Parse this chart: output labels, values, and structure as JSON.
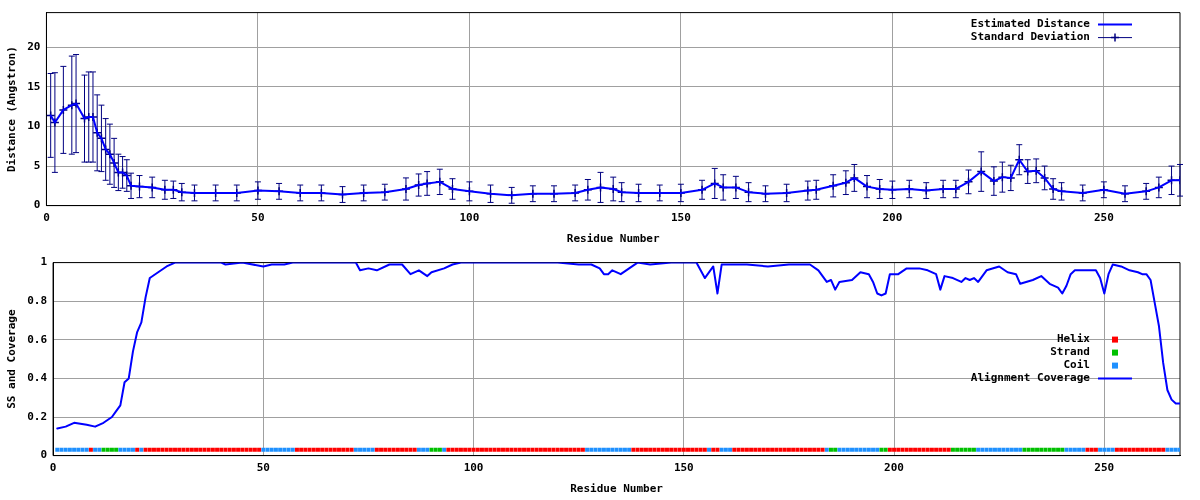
{
  "chart_data": [
    {
      "type": "line",
      "xlabel": "Residue Number",
      "ylabel": "Distance (Angstron)",
      "xlim": [
        0,
        268
      ],
      "xticks": [
        0,
        50,
        100,
        150,
        200,
        250
      ],
      "ylim": [
        0,
        24.4
      ],
      "yticks": [
        0,
        5,
        10,
        15,
        20
      ],
      "grid": true,
      "legend": "top right",
      "x": [
        1,
        2,
        4,
        6,
        7,
        9,
        10,
        11,
        12,
        13,
        14,
        15,
        16,
        17,
        18,
        19,
        20,
        22,
        25,
        28,
        30,
        32,
        35,
        40,
        45,
        50,
        55,
        60,
        65,
        70,
        75,
        80,
        85,
        88,
        90,
        93,
        96,
        100,
        105,
        110,
        115,
        120,
        125,
        128,
        131,
        134,
        136,
        140,
        145,
        150,
        155,
        158,
        160,
        163,
        166,
        170,
        175,
        180,
        182,
        186,
        189,
        191,
        194,
        197,
        200,
        204,
        208,
        212,
        215,
        218,
        221,
        224,
        226,
        228,
        230,
        232,
        234,
        236,
        238,
        240,
        245,
        250,
        255,
        260,
        263,
        266,
        268
      ],
      "series": [
        {
          "name": "Estimated Distance",
          "color": "#0000ff",
          "values": [
            11.4,
            10.5,
            12.1,
            12.7,
            12.9,
            11.0,
            11.2,
            11.2,
            9.2,
            8.5,
            7.1,
            6.5,
            5.4,
            4.2,
            4.2,
            3.8,
            2.5,
            2.4,
            2.3,
            2.0,
            2.0,
            1.7,
            1.6,
            1.6,
            1.6,
            1.9,
            1.8,
            1.6,
            1.6,
            1.4,
            1.6,
            1.7,
            2.1,
            2.6,
            2.8,
            3.0,
            2.1,
            1.8,
            1.5,
            1.3,
            1.5,
            1.5,
            1.6,
            2.0,
            2.3,
            2.1,
            1.7,
            1.6,
            1.6,
            1.6,
            2.0,
            2.8,
            2.3,
            2.3,
            1.7,
            1.5,
            1.6,
            1.9,
            2.0,
            2.5,
            2.9,
            3.5,
            2.4,
            2.1,
            2.0,
            2.1,
            1.9,
            2.1,
            2.1,
            3.0,
            4.3,
            3.1,
            3.6,
            3.5,
            5.8,
            4.3,
            4.4,
            3.5,
            2.1,
            1.8,
            1.6,
            2.0,
            1.5,
            1.8,
            2.3,
            3.2,
            3.2
          ]
        },
        {
          "name": "Standard Deviation",
          "type": "scatter",
          "marker": "cross",
          "color": "#000080",
          "values": [
            11.4,
            10.5,
            12.1,
            12.7,
            12.9,
            11.0,
            11.2,
            11.2,
            9.2,
            8.5,
            7.1,
            6.5,
            5.4,
            4.2,
            4.2,
            3.8,
            2.5,
            2.4,
            2.3,
            2.0,
            2.0,
            1.7,
            1.6,
            1.6,
            1.6,
            1.9,
            1.8,
            1.6,
            1.6,
            1.4,
            1.6,
            1.7,
            2.1,
            2.6,
            2.8,
            3.0,
            2.1,
            1.8,
            1.5,
            1.3,
            1.5,
            1.5,
            1.6,
            2.0,
            2.3,
            2.1,
            1.7,
            1.6,
            1.6,
            1.6,
            2.0,
            2.8,
            2.3,
            2.3,
            1.7,
            1.5,
            1.6,
            1.9,
            2.0,
            2.5,
            2.9,
            3.5,
            2.4,
            2.1,
            2.0,
            2.1,
            1.9,
            2.1,
            2.1,
            3.0,
            4.3,
            3.1,
            3.6,
            3.5,
            5.8,
            4.3,
            4.4,
            3.5,
            2.1,
            1.8,
            1.6,
            2.0,
            1.5,
            1.8,
            2.3,
            3.2,
            3.2
          ],
          "errors": [
            5.3,
            6.3,
            5.5,
            6.2,
            6.2,
            5.5,
            5.7,
            5.7,
            4.8,
            4.2,
            3.9,
            3.8,
            3.1,
            2.3,
            2.0,
            2.0,
            1.6,
            1.4,
            1.3,
            1.2,
            1.1,
            1.1,
            1.0,
            1.0,
            1.0,
            1.1,
            1.0,
            1.0,
            1.0,
            1.0,
            1.0,
            1.0,
            1.4,
            1.4,
            1.5,
            1.6,
            1.3,
            1.2,
            1.1,
            1.0,
            1.0,
            1.0,
            1.0,
            1.3,
            1.9,
            1.5,
            1.2,
            1.1,
            1.0,
            1.1,
            1.2,
            1.9,
            1.6,
            1.4,
            1.2,
            1.0,
            1.1,
            1.2,
            1.2,
            1.4,
            1.5,
            1.7,
            1.4,
            1.2,
            1.1,
            1.1,
            1.0,
            1.1,
            1.1,
            1.5,
            2.5,
            1.8,
            1.9,
            1.6,
            1.9,
            1.5,
            1.5,
            1.5,
            1.3,
            1.1,
            1.0,
            1.0,
            1.0,
            1.0,
            1.3,
            1.8,
            2.0
          ]
        }
      ]
    },
    {
      "type": "line",
      "xlabel": "Residue Number",
      "ylabel": "SS and Coverage",
      "xlim": [
        0,
        268
      ],
      "xticks": [
        0,
        50,
        100,
        150,
        200,
        250
      ],
      "ylim": [
        0,
        1
      ],
      "yticks": [
        0,
        0.2,
        0.4,
        0.6,
        0.8,
        1
      ],
      "grid": true,
      "legend": "center right",
      "series": [
        {
          "name": "Helix",
          "type": "scatter",
          "marker": "square",
          "color": "#ff0000",
          "x": [
            9,
            20,
            22,
            23,
            24,
            25,
            26,
            27,
            28,
            29,
            30,
            31,
            32,
            33,
            34,
            35,
            36,
            37,
            38,
            39,
            40,
            41,
            42,
            43,
            44,
            45,
            46,
            47,
            48,
            49,
            58,
            59,
            60,
            61,
            62,
            63,
            64,
            65,
            66,
            67,
            68,
            69,
            70,
            71,
            77,
            78,
            79,
            80,
            81,
            82,
            83,
            84,
            85,
            86,
            94,
            95,
            96,
            97,
            98,
            99,
            100,
            101,
            102,
            103,
            104,
            105,
            106,
            107,
            108,
            109,
            110,
            111,
            112,
            113,
            114,
            115,
            116,
            117,
            118,
            119,
            120,
            121,
            122,
            123,
            124,
            125,
            126,
            138,
            139,
            140,
            141,
            142,
            143,
            144,
            145,
            146,
            147,
            148,
            149,
            150,
            151,
            152,
            153,
            154,
            155,
            157,
            158,
            162,
            163,
            164,
            165,
            166,
            167,
            168,
            169,
            170,
            171,
            172,
            173,
            174,
            175,
            176,
            177,
            178,
            179,
            180,
            181,
            182,
            183,
            199,
            200,
            201,
            202,
            203,
            204,
            205,
            206,
            207,
            208,
            209,
            210,
            211,
            212,
            213,
            246,
            247,
            248,
            253,
            254,
            255,
            256,
            257,
            258,
            259,
            260,
            261,
            262,
            263,
            264
          ],
          "values": [
            0.03,
            0.03,
            0.03,
            0.03,
            0.03,
            0.03,
            0.03,
            0.03,
            0.03,
            0.03,
            0.03,
            0.03,
            0.03,
            0.03,
            0.03,
            0.03,
            0.03,
            0.03,
            0.03,
            0.03,
            0.03,
            0.03,
            0.03,
            0.03,
            0.03,
            0.03,
            0.03,
            0.03,
            0.03,
            0.03,
            0.03,
            0.03,
            0.03,
            0.03,
            0.03,
            0.03,
            0.03,
            0.03,
            0.03,
            0.03,
            0.03,
            0.03,
            0.03,
            0.03,
            0.03,
            0.03,
            0.03,
            0.03,
            0.03,
            0.03,
            0.03,
            0.03,
            0.03,
            0.03,
            0.03,
            0.03,
            0.03,
            0.03,
            0.03,
            0.03,
            0.03,
            0.03,
            0.03,
            0.03,
            0.03,
            0.03,
            0.03,
            0.03,
            0.03,
            0.03,
            0.03,
            0.03,
            0.03,
            0.03,
            0.03,
            0.03,
            0.03,
            0.03,
            0.03,
            0.03,
            0.03,
            0.03,
            0.03,
            0.03,
            0.03,
            0.03,
            0.03,
            0.03,
            0.03,
            0.03,
            0.03,
            0.03,
            0.03,
            0.03,
            0.03,
            0.03,
            0.03,
            0.03,
            0.03,
            0.03,
            0.03,
            0.03,
            0.03,
            0.03,
            0.03,
            0.03,
            0.03,
            0.03,
            0.03,
            0.03,
            0.03,
            0.03,
            0.03,
            0.03,
            0.03,
            0.03,
            0.03,
            0.03,
            0.03,
            0.03,
            0.03,
            0.03,
            0.03,
            0.03,
            0.03,
            0.03,
            0.03,
            0.03,
            0.03,
            0.03,
            0.03,
            0.03,
            0.03,
            0.03,
            0.03,
            0.03,
            0.03,
            0.03,
            0.03,
            0.03,
            0.03,
            0.03,
            0.03,
            0.03,
            0.03,
            0.03,
            0.03,
            0.03,
            0.03,
            0.03,
            0.03,
            0.03,
            0.03,
            0.03,
            0.03,
            0.03,
            0.03,
            0.03,
            0.03
          ]
        },
        {
          "name": "Strand",
          "type": "scatter",
          "marker": "square",
          "color": "#00c000",
          "x": [
            12,
            13,
            14,
            15,
            90,
            91,
            92,
            185,
            186,
            197,
            198,
            214,
            215,
            216,
            217,
            218,
            219,
            231,
            232,
            233,
            234,
            235,
            236,
            237,
            238,
            239,
            240
          ],
          "values": [
            0.03,
            0.03,
            0.03,
            0.03,
            0.03,
            0.03,
            0.03,
            0.03,
            0.03,
            0.03,
            0.03,
            0.03,
            0.03,
            0.03,
            0.03,
            0.03,
            0.03,
            0.03,
            0.03,
            0.03,
            0.03,
            0.03,
            0.03,
            0.03,
            0.03,
            0.03,
            0.03
          ]
        },
        {
          "name": "Coil",
          "type": "scatter",
          "marker": "square",
          "color": "#1e90ff",
          "x": [
            1,
            2,
            3,
            4,
            5,
            6,
            7,
            8,
            10,
            11,
            16,
            17,
            18,
            19,
            21,
            50,
            51,
            52,
            53,
            54,
            55,
            56,
            57,
            72,
            73,
            74,
            75,
            76,
            87,
            88,
            89,
            93,
            127,
            128,
            129,
            130,
            131,
            132,
            133,
            134,
            135,
            136,
            137,
            156,
            159,
            160,
            161,
            184,
            187,
            188,
            189,
            190,
            191,
            192,
            193,
            194,
            195,
            196,
            220,
            221,
            222,
            223,
            224,
            225,
            226,
            227,
            228,
            229,
            230,
            241,
            242,
            243,
            244,
            245,
            249,
            250,
            251,
            252,
            265,
            266,
            267,
            268
          ],
          "values": [
            0.03,
            0.03,
            0.03,
            0.03,
            0.03,
            0.03,
            0.03,
            0.03,
            0.03,
            0.03,
            0.03,
            0.03,
            0.03,
            0.03,
            0.03,
            0.03,
            0.03,
            0.03,
            0.03,
            0.03,
            0.03,
            0.03,
            0.03,
            0.03,
            0.03,
            0.03,
            0.03,
            0.03,
            0.03,
            0.03,
            0.03,
            0.03,
            0.03,
            0.03,
            0.03,
            0.03,
            0.03,
            0.03,
            0.03,
            0.03,
            0.03,
            0.03,
            0.03,
            0.03,
            0.03,
            0.03,
            0.03,
            0.03,
            0.03,
            0.03,
            0.03,
            0.03,
            0.03,
            0.03,
            0.03,
            0.03,
            0.03,
            0.03,
            0.03,
            0.03,
            0.03,
            0.03,
            0.03,
            0.03,
            0.03,
            0.03,
            0.03,
            0.03,
            0.03,
            0.03,
            0.03,
            0.03,
            0.03,
            0.03,
            0.03,
            0.03,
            0.03,
            0.03,
            0.03,
            0.03,
            0.03,
            0.03
          ]
        },
        {
          "name": "Alignment Coverage",
          "color": "#0000ff",
          "x": [
            1,
            3,
            5,
            8,
            10,
            12,
            14,
            15,
            16,
            17,
            18,
            19,
            20,
            21,
            22,
            23,
            25,
            27,
            29,
            40,
            41,
            45,
            50,
            52,
            55,
            57,
            72,
            73,
            75,
            77,
            80,
            83,
            85,
            87,
            89,
            90,
            93,
            95,
            97,
            120,
            125,
            128,
            130,
            131,
            132,
            133,
            135,
            137,
            139,
            142,
            147,
            153,
            155,
            157,
            158,
            159,
            165,
            170,
            175,
            180,
            182,
            184,
            185,
            186,
            187,
            190,
            192,
            194,
            195,
            196,
            197,
            198,
            199,
            201,
            203,
            206,
            208,
            210,
            211,
            212,
            214,
            216,
            217,
            218,
            219,
            220,
            222,
            225,
            227,
            229,
            230,
            233,
            235,
            237,
            239,
            240,
            241,
            242,
            243,
            248,
            249,
            250,
            251,
            252,
            254,
            256,
            258,
            259,
            260,
            261,
            262,
            263,
            264,
            265,
            266,
            267,
            268
          ],
          "values": [
            0.14,
            0.15,
            0.17,
            0.16,
            0.15,
            0.17,
            0.2,
            0.23,
            0.26,
            0.38,
            0.4,
            0.54,
            0.64,
            0.69,
            0.82,
            0.92,
            0.95,
            0.98,
            1.0,
            1.0,
            0.99,
            1.0,
            0.98,
            0.99,
            0.99,
            1.0,
            1.0,
            0.96,
            0.97,
            0.96,
            0.99,
            0.99,
            0.94,
            0.96,
            0.93,
            0.95,
            0.97,
            0.99,
            1.0,
            1.0,
            0.99,
            0.99,
            0.97,
            0.94,
            0.94,
            0.96,
            0.94,
            0.97,
            1.0,
            0.99,
            1.0,
            1.0,
            0.92,
            0.98,
            0.84,
            0.99,
            0.99,
            0.98,
            0.99,
            0.99,
            0.96,
            0.9,
            0.91,
            0.86,
            0.9,
            0.91,
            0.95,
            0.94,
            0.9,
            0.84,
            0.83,
            0.84,
            0.94,
            0.94,
            0.97,
            0.97,
            0.96,
            0.94,
            0.86,
            0.93,
            0.92,
            0.9,
            0.92,
            0.91,
            0.92,
            0.9,
            0.96,
            0.98,
            0.95,
            0.94,
            0.89,
            0.91,
            0.93,
            0.89,
            0.87,
            0.84,
            0.88,
            0.94,
            0.96,
            0.96,
            0.92,
            0.84,
            0.94,
            0.99,
            0.98,
            0.96,
            0.95,
            0.94,
            0.94,
            0.91,
            0.79,
            0.67,
            0.48,
            0.34,
            0.29,
            0.27,
            0.27
          ]
        }
      ]
    }
  ]
}
